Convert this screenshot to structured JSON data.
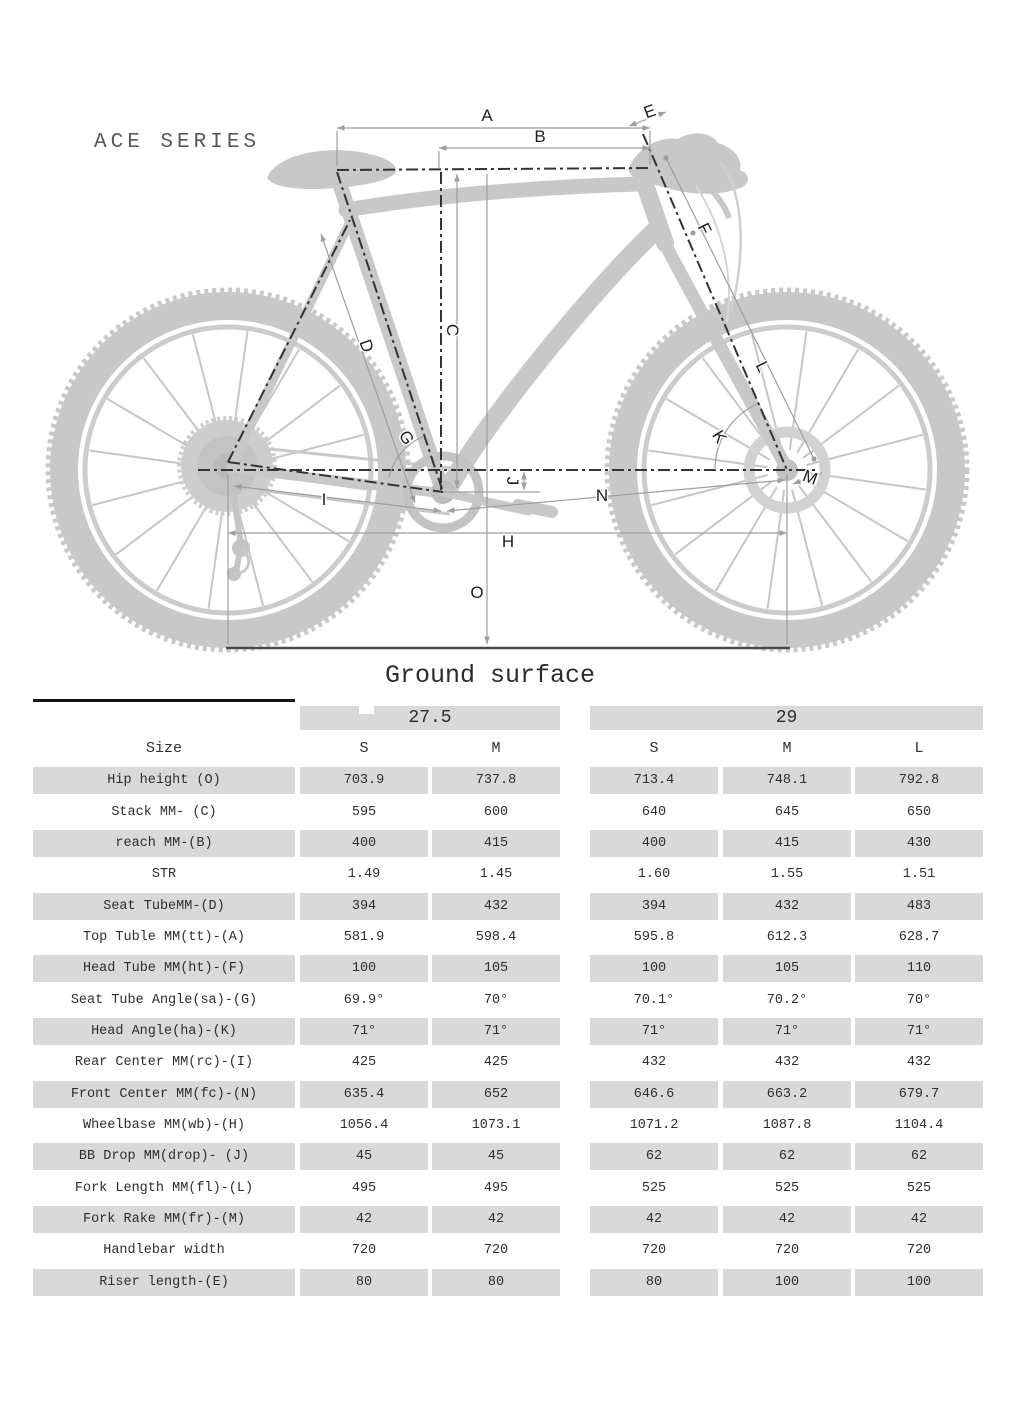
{
  "series_label": "ACE SERIES",
  "diagram": {
    "ground_label": "Ground surface",
    "labels": {
      "A": "A",
      "B": "B",
      "C": "C",
      "D": "D",
      "E": "E",
      "F": "F",
      "G": "G",
      "H": "H",
      "I": "I",
      "J": "J",
      "K": "K",
      "L": "L",
      "M": "M",
      "N": "N",
      "O": "O"
    }
  },
  "table": {
    "wheel_groups": [
      {
        "label": "27.5",
        "sizes": [
          "S",
          "M"
        ]
      },
      {
        "label": "29",
        "sizes": [
          "S",
          "M",
          "L"
        ]
      }
    ],
    "size_label": "Size",
    "size_columns": [
      "S",
      "M",
      "S",
      "M",
      "L"
    ],
    "rows": [
      {
        "label": "Hip height (O)",
        "values": [
          "703.9",
          "737.8",
          "713.4",
          "748.1",
          "792.8"
        ],
        "shaded": true
      },
      {
        "label": "Stack MM- (C)",
        "values": [
          "595",
          "600",
          "640",
          "645",
          "650"
        ],
        "shaded": false
      },
      {
        "label": "reach MM-(B)",
        "values": [
          "400",
          "415",
          "400",
          "415",
          "430"
        ],
        "shaded": true
      },
      {
        "label": "STR",
        "values": [
          "1.49",
          "1.45",
          "1.60",
          "1.55",
          "1.51"
        ],
        "shaded": false
      },
      {
        "label": "Seat TubeMM-(D)",
        "values": [
          "394",
          "432",
          "394",
          "432",
          "483"
        ],
        "shaded": true
      },
      {
        "label": "Top Tuble MM(tt)-(A)",
        "values": [
          "581.9",
          "598.4",
          "595.8",
          "612.3",
          "628.7"
        ],
        "shaded": false
      },
      {
        "label": "Head Tube MM(ht)-(F)",
        "values": [
          "100",
          "105",
          "100",
          "105",
          "110"
        ],
        "shaded": true
      },
      {
        "label": "Seat Tube Angle(sa)-(G)",
        "values": [
          "69.9°",
          "70°",
          "70.1°",
          "70.2°",
          "70°"
        ],
        "shaded": false
      },
      {
        "label": "Head Angle(ha)-(K)",
        "values": [
          "71°",
          "71°",
          "71°",
          "71°",
          "71°"
        ],
        "shaded": true
      },
      {
        "label": "Rear Center MM(rc)-(I)",
        "values": [
          "425",
          "425",
          "432",
          "432",
          "432"
        ],
        "shaded": false
      },
      {
        "label": "Front Center MM(fc)-(N)",
        "values": [
          "635.4",
          "652",
          "646.6",
          "663.2",
          "679.7"
        ],
        "shaded": true
      },
      {
        "label": "Wheelbase MM(wb)-(H)",
        "values": [
          "1056.4",
          "1073.1",
          "1071.2",
          "1087.8",
          "1104.4"
        ],
        "shaded": false
      },
      {
        "label": "BB Drop MM(drop)- (J)",
        "values": [
          "45",
          "45",
          "62",
          "62",
          "62"
        ],
        "shaded": true
      },
      {
        "label": "Fork Length MM(fl)-(L)",
        "values": [
          "495",
          "495",
          "525",
          "525",
          "525"
        ],
        "shaded": false
      },
      {
        "label": "Fork Rake MM(fr)-(M)",
        "values": [
          "42",
          "42",
          "42",
          "42",
          "42"
        ],
        "shaded": true
      },
      {
        "label": "Handlebar width",
        "values": [
          "720",
          "720",
          "720",
          "720",
          "720"
        ],
        "shaded": false
      },
      {
        "label": "Riser length-(E)",
        "values": [
          "80",
          "80",
          "80",
          "100",
          "100"
        ],
        "shaded": true
      }
    ]
  },
  "colors": {
    "shaded_cell": "#d9d9d9",
    "table_text": "#2e2e2e",
    "silhouette": "#c8c8c8",
    "dim_line": "#9e9e9e",
    "dash_line": "#333333"
  }
}
